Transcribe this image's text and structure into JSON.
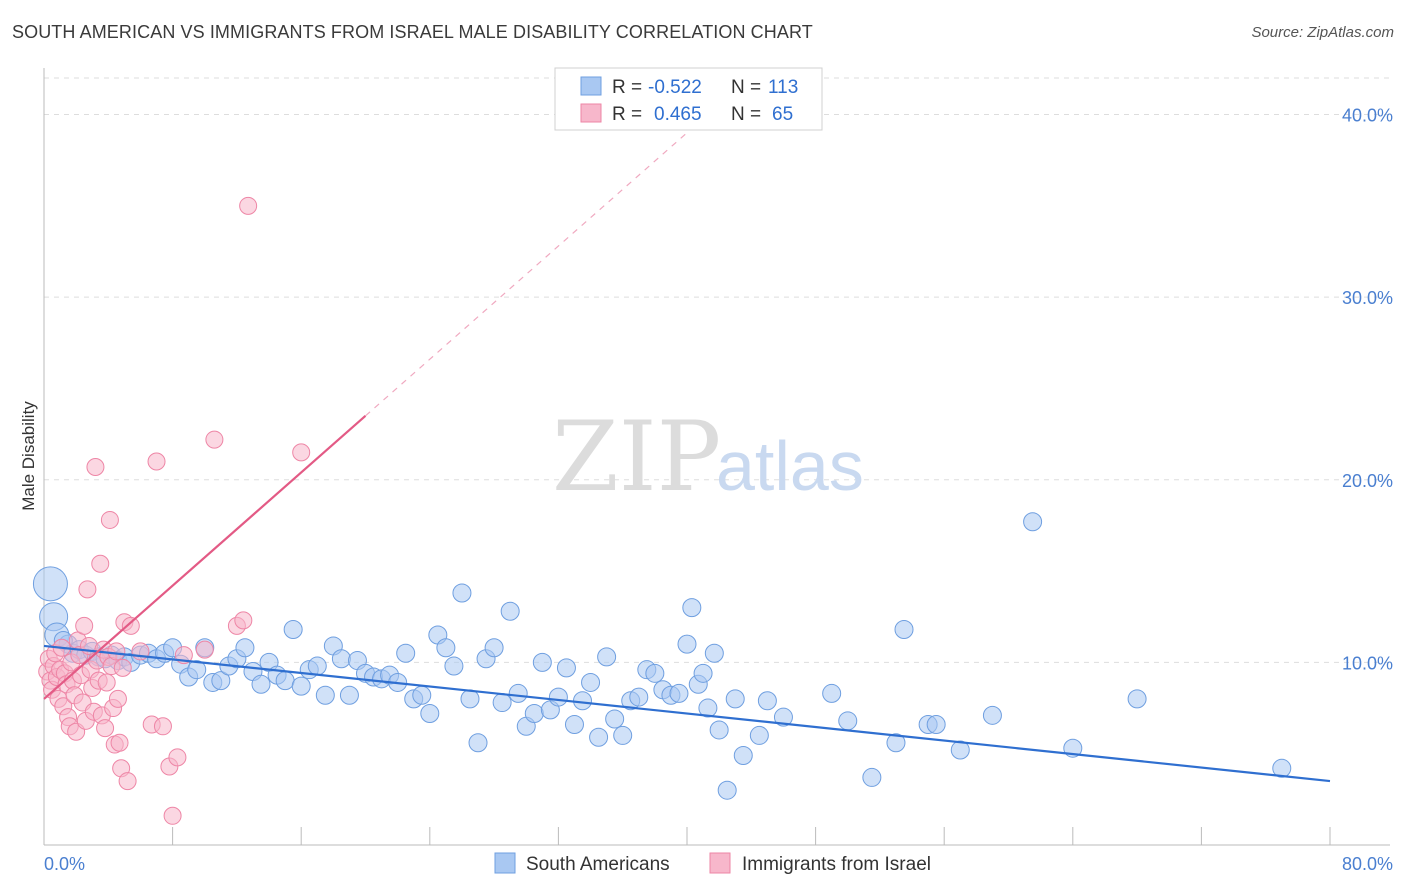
{
  "title": "SOUTH AMERICAN VS IMMIGRANTS FROM ISRAEL MALE DISABILITY CORRELATION CHART",
  "source": "Source: ZipAtlas.com",
  "watermark": {
    "part1": "ZIP",
    "part2": "atlas"
  },
  "colors": {
    "blue_fill": "#a9c8f2",
    "blue_stroke": "#6f9fe0",
    "blue_line": "#2f6fd0",
    "pink_fill": "#f7b7cb",
    "pink_stroke": "#ee86a6",
    "pink_line": "#e35a85",
    "grid": "#dddddd",
    "axis_text": "#4a7fd0"
  },
  "legend": {
    "rows": [
      {
        "r_label": "R =",
        "r_value": "-0.522",
        "n_label": "N =",
        "n_value": "113",
        "series": "blue"
      },
      {
        "r_label": "R =",
        "r_value": "0.465",
        "n_label": "N =",
        "n_value": "65",
        "series": "pink"
      }
    ]
  },
  "chart_data": {
    "type": "scatter",
    "title": "SOUTH AMERICAN VS IMMIGRANTS FROM ISRAEL MALE DISABILITY CORRELATION CHART",
    "xlabel": "",
    "ylabel": "Male Disability",
    "xlim": [
      0,
      80
    ],
    "ylim": [
      0,
      42
    ],
    "x_tick_labels": [
      "0.0%",
      "80.0%"
    ],
    "y_ticks": [
      10,
      20,
      30,
      40
    ],
    "y_tick_labels": [
      "10.0%",
      "20.0%",
      "30.0%",
      "40.0%"
    ],
    "grid": true,
    "legend_position": "top-center",
    "series": [
      {
        "name": "South Americans",
        "color": "#a9c8f2",
        "r": -0.522,
        "n": 113,
        "trendline": {
          "x": [
            0,
            80
          ],
          "y": [
            10.9,
            3.5
          ]
        },
        "points": [
          [
            0.4,
            14.3
          ],
          [
            0.6,
            12.5
          ],
          [
            0.8,
            11.5
          ],
          [
            1.5,
            11.0
          ],
          [
            1.8,
            10.5
          ],
          [
            2.2,
            10.7
          ],
          [
            2.6,
            10.4
          ],
          [
            3.0,
            10.6
          ],
          [
            3.4,
            10.3
          ],
          [
            3.8,
            10.2
          ],
          [
            4.2,
            10.4
          ],
          [
            4.6,
            10.1
          ],
          [
            5.0,
            10.3
          ],
          [
            5.4,
            10.0
          ],
          [
            6.0,
            10.4
          ],
          [
            6.5,
            10.5
          ],
          [
            7.0,
            10.2
          ],
          [
            7.5,
            10.5
          ],
          [
            8.0,
            10.8
          ],
          [
            8.5,
            9.9
          ],
          [
            9.0,
            9.2
          ],
          [
            9.5,
            9.6
          ],
          [
            10.0,
            10.8
          ],
          [
            10.5,
            8.9
          ],
          [
            11.0,
            9.0
          ],
          [
            11.5,
            9.8
          ],
          [
            12.0,
            10.2
          ],
          [
            12.5,
            10.8
          ],
          [
            13.0,
            9.5
          ],
          [
            13.5,
            8.8
          ],
          [
            14.0,
            10.0
          ],
          [
            14.5,
            9.3
          ],
          [
            15.0,
            9.0
          ],
          [
            15.5,
            11.8
          ],
          [
            16.0,
            8.7
          ],
          [
            16.5,
            9.6
          ],
          [
            17.0,
            9.8
          ],
          [
            17.5,
            8.2
          ],
          [
            18.0,
            10.9
          ],
          [
            18.5,
            10.2
          ],
          [
            19.0,
            8.2
          ],
          [
            19.5,
            10.1
          ],
          [
            20.0,
            9.4
          ],
          [
            20.5,
            9.2
          ],
          [
            21.0,
            9.1
          ],
          [
            21.5,
            9.3
          ],
          [
            22.0,
            8.9
          ],
          [
            22.5,
            10.5
          ],
          [
            23.0,
            8.0
          ],
          [
            23.5,
            8.2
          ],
          [
            24.0,
            7.2
          ],
          [
            24.5,
            11.5
          ],
          [
            25.0,
            10.8
          ],
          [
            25.5,
            9.8
          ],
          [
            26.0,
            13.8
          ],
          [
            26.5,
            8.0
          ],
          [
            27.0,
            5.6
          ],
          [
            27.5,
            10.2
          ],
          [
            28.0,
            10.8
          ],
          [
            28.5,
            7.8
          ],
          [
            29.0,
            12.8
          ],
          [
            29.5,
            8.3
          ],
          [
            30.0,
            6.5
          ],
          [
            30.5,
            7.2
          ],
          [
            31.0,
            10.0
          ],
          [
            31.5,
            7.4
          ],
          [
            32.0,
            8.1
          ],
          [
            32.5,
            9.7
          ],
          [
            33.0,
            6.6
          ],
          [
            33.5,
            7.9
          ],
          [
            34.0,
            8.9
          ],
          [
            34.5,
            5.9
          ],
          [
            35.0,
            10.3
          ],
          [
            35.5,
            6.9
          ],
          [
            36.0,
            6.0
          ],
          [
            36.5,
            7.9
          ],
          [
            37.0,
            8.1
          ],
          [
            37.5,
            9.6
          ],
          [
            38.0,
            9.4
          ],
          [
            38.5,
            8.5
          ],
          [
            39.0,
            8.2
          ],
          [
            39.5,
            8.3
          ],
          [
            40.0,
            11.0
          ],
          [
            40.3,
            13.0
          ],
          [
            40.7,
            8.8
          ],
          [
            41.0,
            9.4
          ],
          [
            41.3,
            7.5
          ],
          [
            41.7,
            10.5
          ],
          [
            42.0,
            6.3
          ],
          [
            42.5,
            3.0
          ],
          [
            43.0,
            8.0
          ],
          [
            43.5,
            4.9
          ],
          [
            44.5,
            6.0
          ],
          [
            45.0,
            7.9
          ],
          [
            46.0,
            7.0
          ],
          [
            49.0,
            8.3
          ],
          [
            50.0,
            6.8
          ],
          [
            51.5,
            3.7
          ],
          [
            53.0,
            5.6
          ],
          [
            53.5,
            11.8
          ],
          [
            55.0,
            6.6
          ],
          [
            55.5,
            6.6
          ],
          [
            57.0,
            5.2
          ],
          [
            59.0,
            7.1
          ],
          [
            61.5,
            17.7
          ],
          [
            64.0,
            5.3
          ],
          [
            68.0,
            8.0
          ],
          [
            77.0,
            4.2
          ],
          [
            1.2,
            11.2
          ]
        ]
      },
      {
        "name": "Immigrants from Israel",
        "color": "#f7b7cb",
        "r": 0.465,
        "n": 65,
        "trendline": {
          "x": [
            0,
            20
          ],
          "y": [
            8.0,
            23.5
          ]
        },
        "trendline_extended": {
          "x": [
            20,
            40
          ],
          "y": [
            23.5,
            39.0
          ]
        },
        "points": [
          [
            0.2,
            9.5
          ],
          [
            0.3,
            10.2
          ],
          [
            0.4,
            9.0
          ],
          [
            0.5,
            8.5
          ],
          [
            0.6,
            9.8
          ],
          [
            0.7,
            10.5
          ],
          [
            0.8,
            9.2
          ],
          [
            0.9,
            8.0
          ],
          [
            1.0,
            9.6
          ],
          [
            1.1,
            10.8
          ],
          [
            1.2,
            7.6
          ],
          [
            1.3,
            9.4
          ],
          [
            1.4,
            8.8
          ],
          [
            1.5,
            7.0
          ],
          [
            1.6,
            6.5
          ],
          [
            1.7,
            10.0
          ],
          [
            1.8,
            9.0
          ],
          [
            1.9,
            8.2
          ],
          [
            2.0,
            6.2
          ],
          [
            2.1,
            11.2
          ],
          [
            2.2,
            10.4
          ],
          [
            2.3,
            9.3
          ],
          [
            2.4,
            7.8
          ],
          [
            2.5,
            12.0
          ],
          [
            2.6,
            6.8
          ],
          [
            2.7,
            14.0
          ],
          [
            2.8,
            10.9
          ],
          [
            2.9,
            9.6
          ],
          [
            3.0,
            8.6
          ],
          [
            3.1,
            7.3
          ],
          [
            3.2,
            20.7
          ],
          [
            3.3,
            10.1
          ],
          [
            3.4,
            9.0
          ],
          [
            3.5,
            15.4
          ],
          [
            3.6,
            7.1
          ],
          [
            3.7,
            10.7
          ],
          [
            3.8,
            6.4
          ],
          [
            3.9,
            8.9
          ],
          [
            4.0,
            10.3
          ],
          [
            4.1,
            17.8
          ],
          [
            4.2,
            9.8
          ],
          [
            4.3,
            7.5
          ],
          [
            4.4,
            5.5
          ],
          [
            4.5,
            10.6
          ],
          [
            4.6,
            8.0
          ],
          [
            4.7,
            5.6
          ],
          [
            4.8,
            4.2
          ],
          [
            4.9,
            9.7
          ],
          [
            5.0,
            12.2
          ],
          [
            5.2,
            3.5
          ],
          [
            5.4,
            12.0
          ],
          [
            6.0,
            10.6
          ],
          [
            6.7,
            6.6
          ],
          [
            7.0,
            21.0
          ],
          [
            7.4,
            6.5
          ],
          [
            7.8,
            4.3
          ],
          [
            8.0,
            1.6
          ],
          [
            8.3,
            4.8
          ],
          [
            8.7,
            10.4
          ],
          [
            10.0,
            10.7
          ],
          [
            10.6,
            22.2
          ],
          [
            12.0,
            12.0
          ],
          [
            12.4,
            12.3
          ],
          [
            12.7,
            35.0
          ],
          [
            16.0,
            21.5
          ]
        ]
      }
    ]
  },
  "bottom_legend": {
    "items": [
      {
        "label": "South Americans",
        "series": "blue"
      },
      {
        "label": "Immigrants from Israel",
        "series": "pink"
      }
    ]
  }
}
